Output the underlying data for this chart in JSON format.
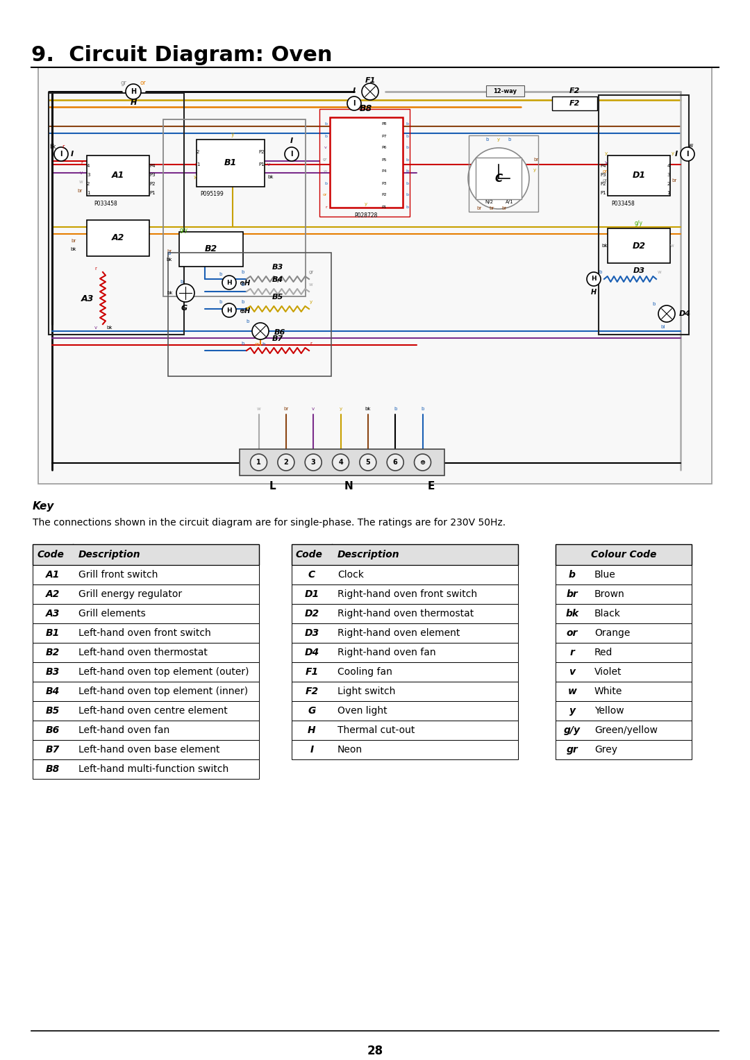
{
  "title": "9.  Circuit Diagram: Oven",
  "page_number": "28",
  "key_text": "Key",
  "key_description": "The connections shown in the circuit diagram are for single-phase. The ratings are for 230V 50Hz.",
  "table1_headers": [
    "Code",
    "Description"
  ],
  "table1_rows": [
    [
      "A1",
      "Grill front switch"
    ],
    [
      "A2",
      "Grill energy regulator"
    ],
    [
      "A3",
      "Grill elements"
    ],
    [
      "B1",
      "Left-hand oven front switch"
    ],
    [
      "B2",
      "Left-hand oven thermostat"
    ],
    [
      "B3",
      "Left-hand oven top element (outer)"
    ],
    [
      "B4",
      "Left-hand oven top element (inner)"
    ],
    [
      "B5",
      "Left-hand oven centre element"
    ],
    [
      "B6",
      "Left-hand oven fan"
    ],
    [
      "B7",
      "Left-hand oven base element"
    ],
    [
      "B8",
      "Left-hand multi-function switch"
    ]
  ],
  "table2_headers": [
    "Code",
    "Description"
  ],
  "table2_rows": [
    [
      "C",
      "Clock"
    ],
    [
      "D1",
      "Right-hand oven front switch"
    ],
    [
      "D2",
      "Right-hand oven thermostat"
    ],
    [
      "D3",
      "Right-hand oven element"
    ],
    [
      "D4",
      "Right-hand oven fan"
    ],
    [
      "F1",
      "Cooling fan"
    ],
    [
      "F2",
      "Light switch"
    ],
    [
      "G",
      "Oven light"
    ],
    [
      "H",
      "Thermal cut-out"
    ],
    [
      "I",
      "Neon"
    ]
  ],
  "table3_header": "Colour Code",
  "table3_rows": [
    [
      "b",
      "Blue"
    ],
    [
      "br",
      "Brown"
    ],
    [
      "bk",
      "Black"
    ],
    [
      "or",
      "Orange"
    ],
    [
      "r",
      "Red"
    ],
    [
      "v",
      "Violet"
    ],
    [
      "w",
      "White"
    ],
    [
      "y",
      "Yellow"
    ],
    [
      "g/y",
      "Green/yellow"
    ],
    [
      "gr",
      "Grey"
    ]
  ],
  "bg_color": "#ffffff",
  "text_color": "#000000",
  "title_color": "#000000",
  "header_bg": "#f0f0f0"
}
